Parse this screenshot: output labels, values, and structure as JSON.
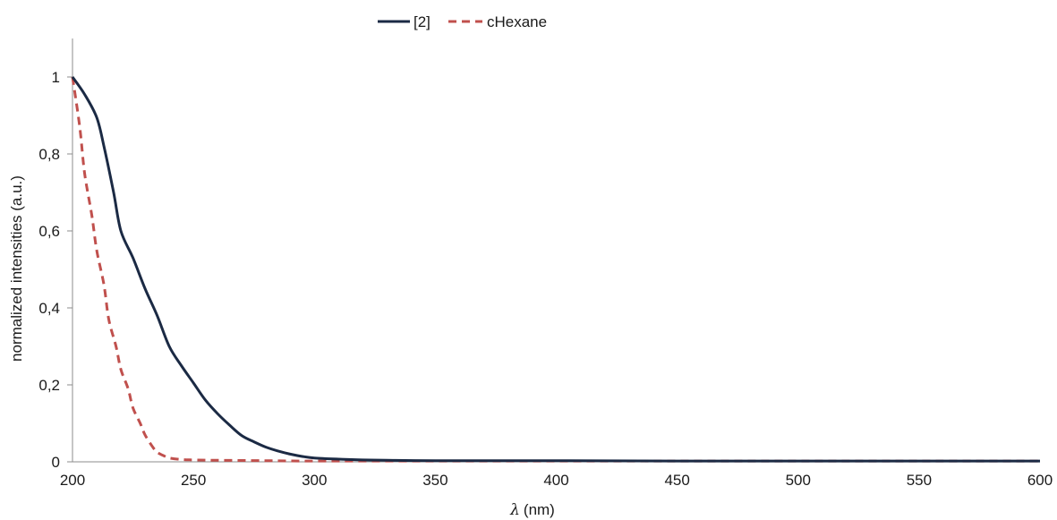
{
  "chart_data": {
    "type": "line",
    "title": "",
    "xlabel": "(nm)",
    "xlabel_symbol": "λ",
    "ylabel": "normalized intensities (a.u.)",
    "xlim": [
      200,
      600
    ],
    "ylim": [
      0,
      1.1
    ],
    "xticks": [
      "200",
      "250",
      "300",
      "350",
      "400",
      "450",
      "500",
      "550",
      "600"
    ],
    "yticks": [
      "0",
      "0,2",
      "0,4",
      "0,6",
      "0,8",
      "1"
    ],
    "grid": false,
    "legend_position": "top-center",
    "series": [
      {
        "name": "[2]",
        "color": "#1b2a44",
        "style": "solid",
        "x": [
          200,
          205,
          210,
          213,
          217,
          220,
          225,
          230,
          235,
          240,
          245,
          250,
          255,
          260,
          265,
          270,
          275,
          280,
          285,
          290,
          295,
          300,
          310,
          320,
          330,
          350,
          400,
          450,
          500,
          550,
          600
        ],
        "y": [
          1.0,
          0.955,
          0.895,
          0.82,
          0.7,
          0.6,
          0.53,
          0.45,
          0.38,
          0.3,
          0.25,
          0.205,
          0.16,
          0.125,
          0.095,
          0.068,
          0.052,
          0.038,
          0.028,
          0.02,
          0.014,
          0.01,
          0.007,
          0.005,
          0.004,
          0.003,
          0.003,
          0.002,
          0.002,
          0.002,
          0.002
        ]
      },
      {
        "name": "cHexane",
        "color": "#c0504d",
        "style": "dashed",
        "x": [
          200,
          203,
          205,
          208,
          210,
          213,
          215,
          218,
          220,
          223,
          225,
          228,
          230,
          233,
          235,
          238,
          240,
          245,
          250,
          260,
          280,
          300,
          350,
          400,
          450,
          500,
          550,
          600
        ],
        "y": [
          1.0,
          0.87,
          0.75,
          0.64,
          0.55,
          0.46,
          0.37,
          0.3,
          0.24,
          0.19,
          0.14,
          0.1,
          0.07,
          0.04,
          0.025,
          0.015,
          0.01,
          0.006,
          0.005,
          0.004,
          0.003,
          0.002,
          0.002,
          0.002,
          0.002,
          0.002,
          0.002,
          0.002
        ]
      }
    ]
  }
}
